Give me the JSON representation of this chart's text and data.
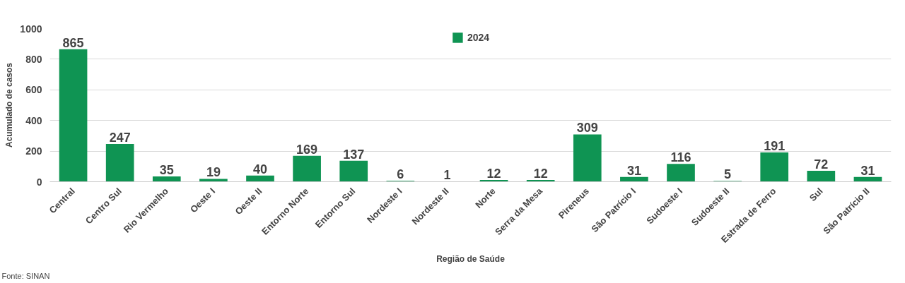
{
  "chart_data": {
    "type": "bar",
    "xlabel": "Região de Saúde",
    "ylabel": "Acumulado de casos",
    "categories": [
      "Central",
      "Centro Sul",
      "Rio Vermelho",
      "Oeste I",
      "Oeste II",
      "Entorno Norte",
      "Entorno Sul",
      "Nordeste I",
      "Nordeste II",
      "Norte",
      "Serra da Mesa",
      "Pireneus",
      "São Patrício I",
      "Sudoeste I",
      "Sudoeste II",
      "Estrada de Ferro",
      "Sul",
      "São Patrício II"
    ],
    "series": [
      {
        "name": "2024",
        "color": "#0f9453",
        "values": [
          865,
          247,
          35,
          19,
          40,
          169,
          137,
          6,
          1,
          12,
          12,
          309,
          31,
          116,
          5,
          191,
          72,
          31
        ]
      }
    ],
    "ylim": [
      0,
      1000
    ],
    "yticks": [
      0,
      200,
      400,
      600,
      800,
      1000
    ],
    "grid": "y",
    "legend": "top",
    "data_labels": true,
    "annotations": [
      "Fonte: SINAN"
    ]
  }
}
